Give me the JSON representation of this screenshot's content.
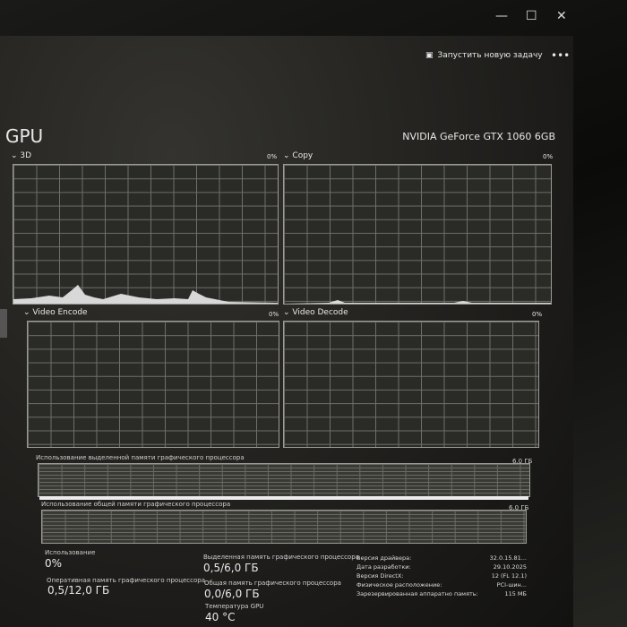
{
  "window": {
    "minimize": "—",
    "maximize": "☐",
    "close": "✕"
  },
  "toolbar": {
    "run_task": "Запустить новую задачу",
    "more": "•••"
  },
  "header": {
    "title": "GPU",
    "gpu_name": "NVIDIA GeForce GTX 1060 6GB"
  },
  "engines": [
    {
      "label": "3D",
      "value": "0%"
    },
    {
      "label": "Copy",
      "value": "0%"
    },
    {
      "label": "Video Encode",
      "value": "0%"
    },
    {
      "label": "Video Decode",
      "value": "0%"
    }
  ],
  "memory_graphs": [
    {
      "label": "Использование выделенной памяти графического процессора",
      "max": "6,0 ГБ"
    },
    {
      "label": "Использование общей памяти графического процессора",
      "max": "6,0 ГБ"
    }
  ],
  "stats": {
    "usage": {
      "label": "Использование",
      "value": "0%"
    },
    "ram": {
      "label": "Оперативная память графического процессора",
      "value": "0,5/12,0 ГБ"
    },
    "dedicated": {
      "label": "Выделенная память графического процессора",
      "value": "0,5/6,0 ГБ"
    },
    "shared": {
      "label": "Общая память графического процессора",
      "value": "0,0/6,0 ГБ"
    },
    "temp": {
      "label": "Температура GPU",
      "value": "40 °C"
    }
  },
  "info": [
    {
      "k": "Версия драйвера:",
      "v": "32.0.15.81..."
    },
    {
      "k": "Дата разработки:",
      "v": "29.10.2025"
    },
    {
      "k": "Версия DirectX:",
      "v": "12 (FL 12.1)"
    },
    {
      "k": "Физическое расположение:",
      "v": "PCI-шин..."
    },
    {
      "k": "Зарезервированная аппаратно память:",
      "v": "115 МБ"
    }
  ]
}
